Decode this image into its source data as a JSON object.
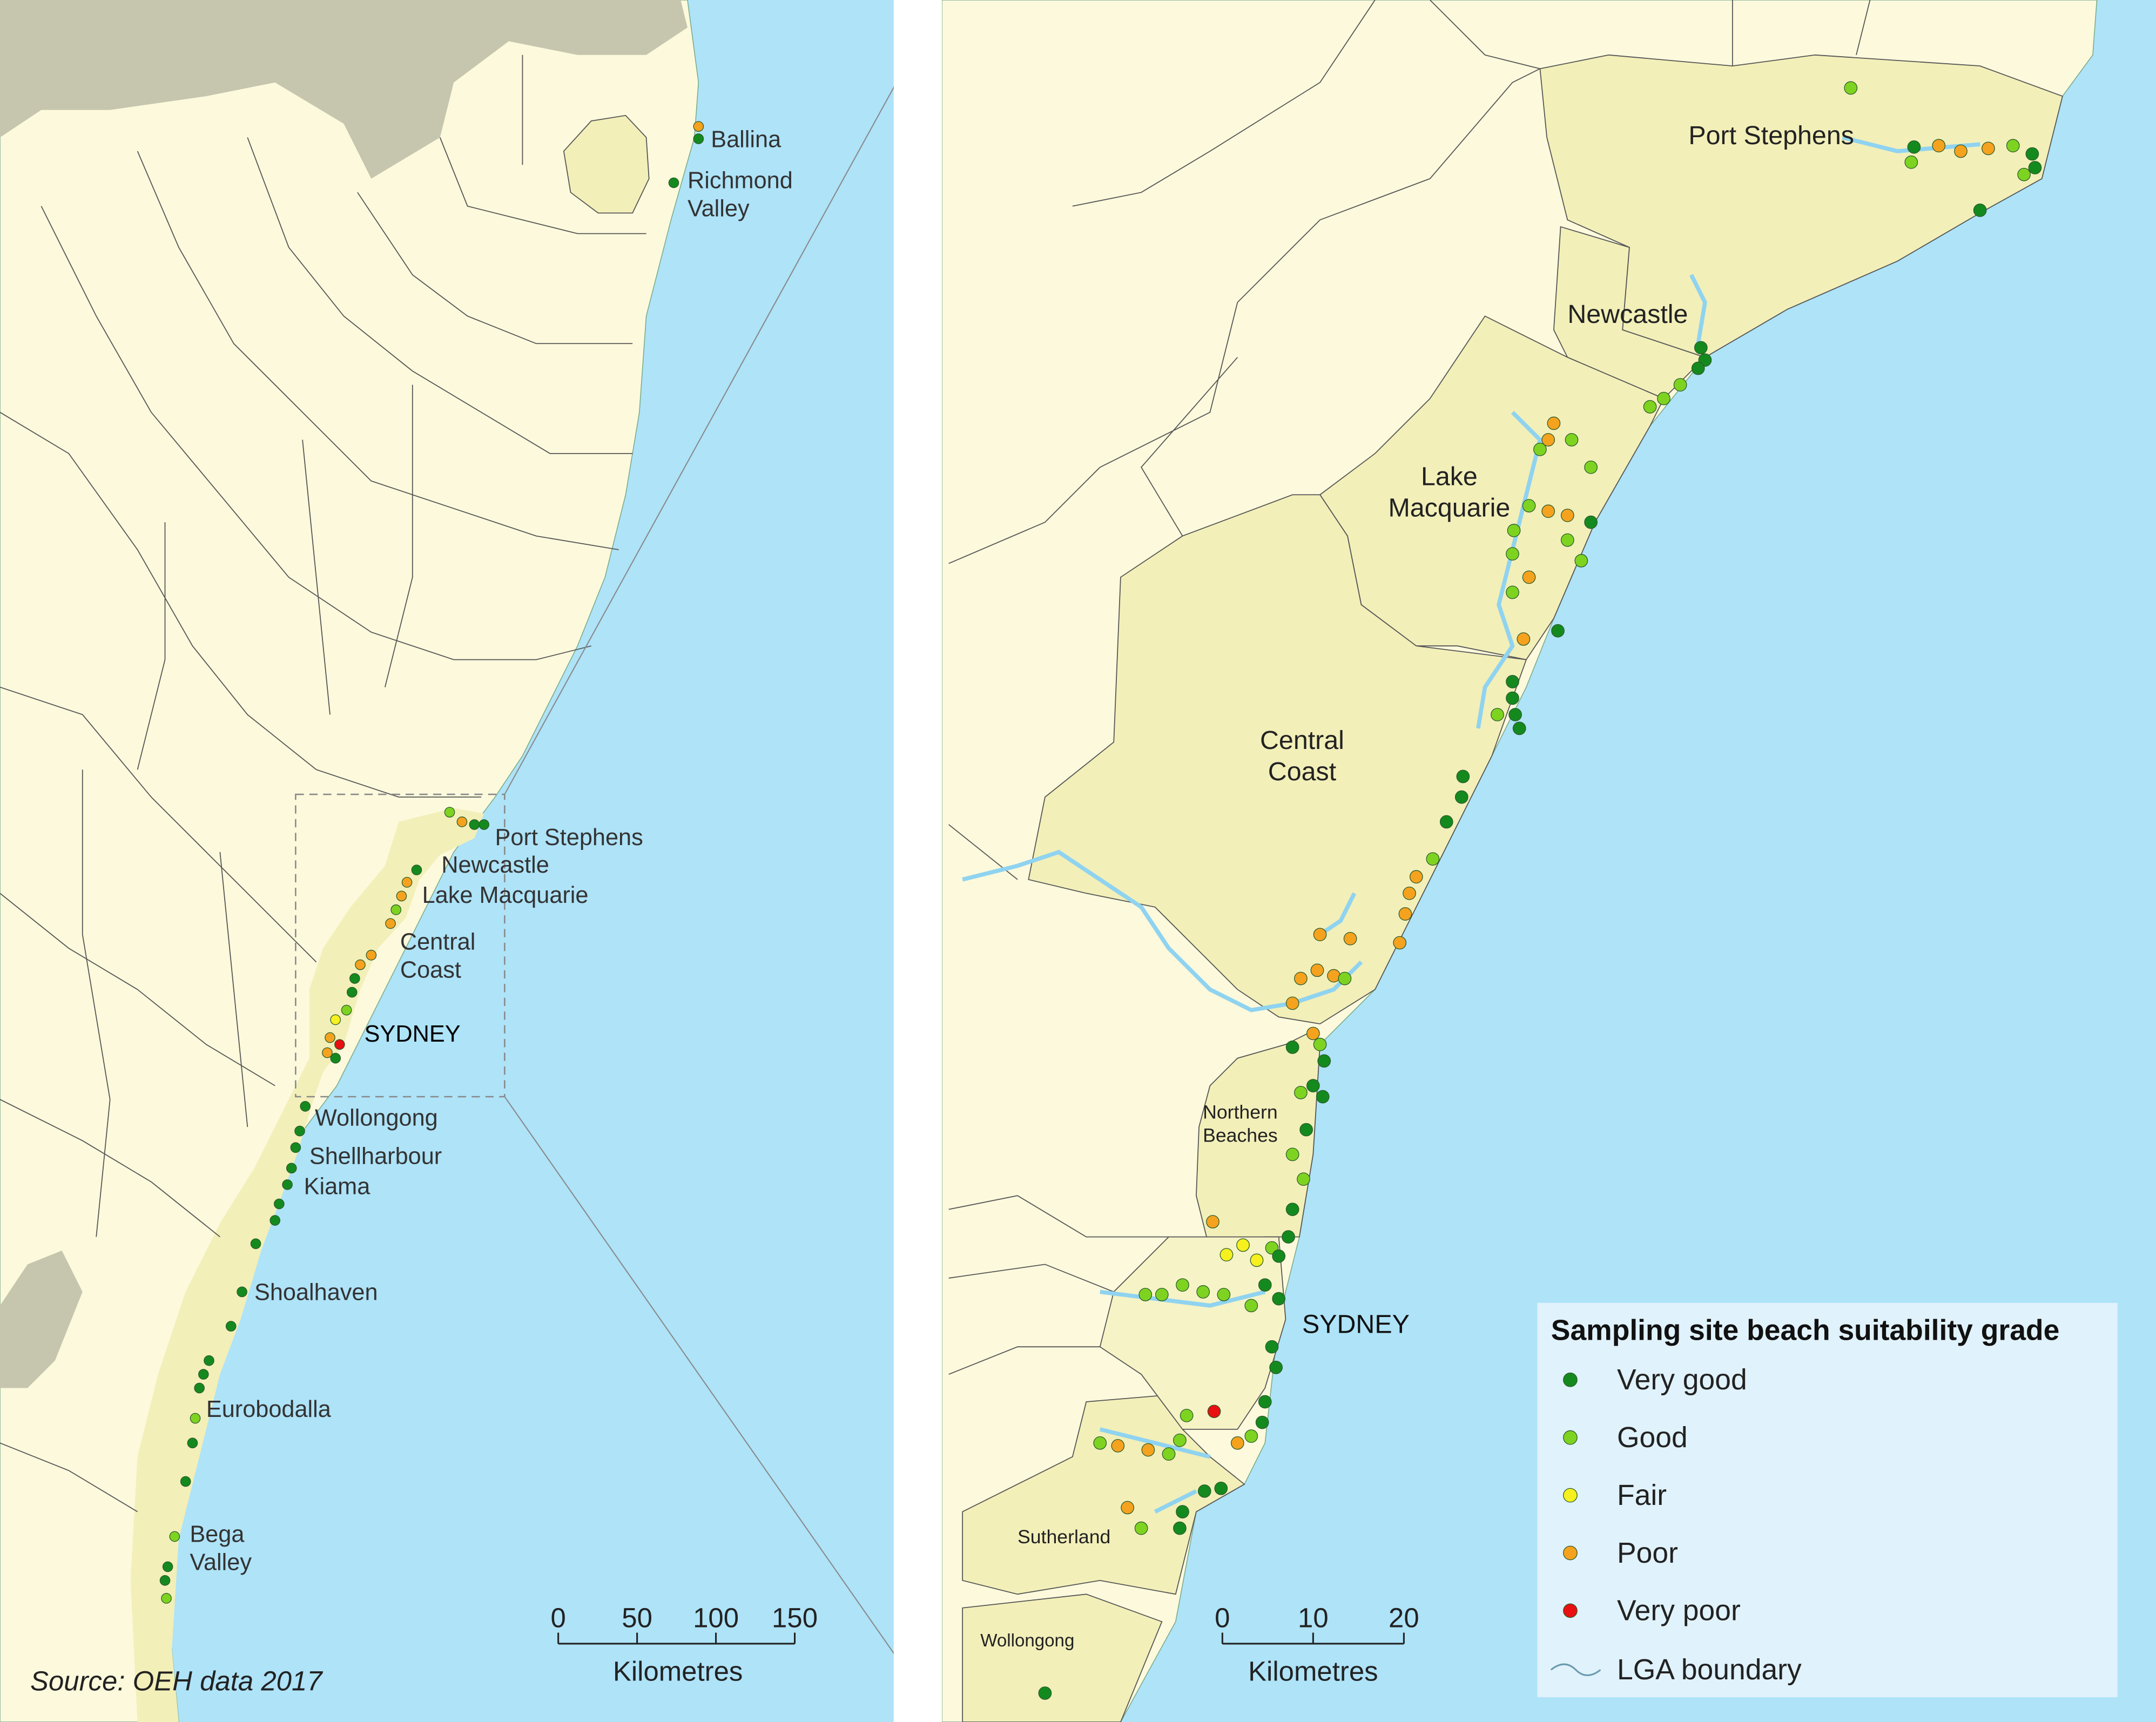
{
  "left_map": {
    "labels": [
      {
        "lines": [
          "Ballina"
        ]
      },
      {
        "lines": [
          "Richmond",
          "Valley"
        ]
      },
      {
        "lines": [
          "Port Stephens"
        ]
      },
      {
        "lines": [
          "Newcastle"
        ]
      },
      {
        "lines": [
          "Lake Macquarie"
        ]
      },
      {
        "lines": [
          "Central",
          "Coast"
        ]
      },
      {
        "lines": [
          "SYDNEY"
        ]
      },
      {
        "lines": [
          "Wollongong"
        ]
      },
      {
        "lines": [
          "Shellharbour"
        ]
      },
      {
        "lines": [
          "Kiama"
        ]
      },
      {
        "lines": [
          "Shoalhaven"
        ]
      },
      {
        "lines": [
          "Eurobodalla"
        ]
      },
      {
        "lines": [
          "Bega",
          "Valley"
        ]
      }
    ],
    "scale_bar": {
      "ticks": [
        0,
        50,
        100,
        150
      ],
      "unit": "Kilometres"
    },
    "source": "Source: OEH data 2017"
  },
  "right_map": {
    "labels": [
      {
        "lines": [
          "Port Stephens"
        ]
      },
      {
        "lines": [
          "Newcastle"
        ]
      },
      {
        "lines": [
          "Lake",
          "Macquarie"
        ]
      },
      {
        "lines": [
          "Central",
          "Coast"
        ]
      },
      {
        "lines": [
          "Northern",
          "Beaches"
        ]
      },
      {
        "lines": [
          "SYDNEY"
        ]
      },
      {
        "lines": [
          "Sutherland"
        ]
      },
      {
        "lines": [
          "Wollongong"
        ]
      }
    ],
    "scale_bar": {
      "ticks": [
        0,
        10,
        20
      ],
      "unit": "Kilometres"
    }
  },
  "legend": {
    "title": "Sampling site beach suitability grade",
    "items": [
      {
        "label": "Very good",
        "color": "#148a1e"
      },
      {
        "label": "Good",
        "color": "#7ed321"
      },
      {
        "label": "Fair",
        "color": "#f5f01e"
      },
      {
        "label": "Poor",
        "color": "#f5a21e"
      },
      {
        "label": "Very poor",
        "color": "#e81010"
      }
    ],
    "boundary_label": "LGA boundary"
  }
}
